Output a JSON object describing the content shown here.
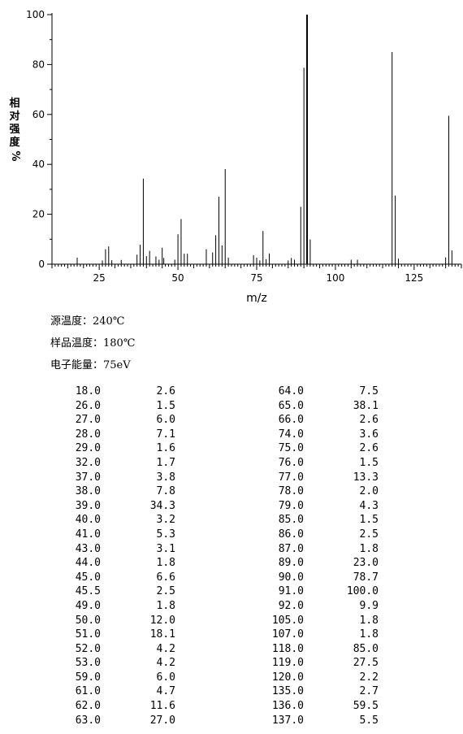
{
  "chart_data": {
    "type": "bar",
    "xlabel": "m/z",
    "ylabel": "相对强度%",
    "xlim": [
      10,
      140
    ],
    "ylim": [
      0,
      100
    ],
    "x_ticks": [
      25,
      50,
      75,
      100,
      125
    ],
    "y_ticks": [
      0,
      20,
      40,
      60,
      80,
      100
    ],
    "grid": false,
    "peaks": [
      [
        18.0,
        2.6
      ],
      [
        26.0,
        1.5
      ],
      [
        27.0,
        6.0
      ],
      [
        28.0,
        7.1
      ],
      [
        29.0,
        1.6
      ],
      [
        32.0,
        1.7
      ],
      [
        37.0,
        3.8
      ],
      [
        38.0,
        7.8
      ],
      [
        39.0,
        34.3
      ],
      [
        40.0,
        3.2
      ],
      [
        41.0,
        5.3
      ],
      [
        43.0,
        3.1
      ],
      [
        44.0,
        1.8
      ],
      [
        45.0,
        6.6
      ],
      [
        45.5,
        2.5
      ],
      [
        49.0,
        1.8
      ],
      [
        50.0,
        12.0
      ],
      [
        51.0,
        18.1
      ],
      [
        52.0,
        4.2
      ],
      [
        53.0,
        4.2
      ],
      [
        59.0,
        6.0
      ],
      [
        61.0,
        4.7
      ],
      [
        62.0,
        11.6
      ],
      [
        63.0,
        27.0
      ],
      [
        64.0,
        7.5
      ],
      [
        65.0,
        38.1
      ],
      [
        66.0,
        2.6
      ],
      [
        74.0,
        3.6
      ],
      [
        75.0,
        2.6
      ],
      [
        76.0,
        1.5
      ],
      [
        77.0,
        13.3
      ],
      [
        78.0,
        2.0
      ],
      [
        79.0,
        4.3
      ],
      [
        85.0,
        1.5
      ],
      [
        86.0,
        2.5
      ],
      [
        87.0,
        1.8
      ],
      [
        89.0,
        23.0
      ],
      [
        90.0,
        78.7
      ],
      [
        91.0,
        100.0
      ],
      [
        92.0,
        9.9
      ],
      [
        105.0,
        1.8
      ],
      [
        107.0,
        1.8
      ],
      [
        118.0,
        85.0
      ],
      [
        119.0,
        27.5
      ],
      [
        120.0,
        2.2
      ],
      [
        135.0,
        2.7
      ],
      [
        136.0,
        59.5
      ],
      [
        137.0,
        5.5
      ]
    ]
  },
  "conditions": {
    "source_temp": "源温度：240℃",
    "sample_temp": "样品温度：180℃",
    "electron_energy": "电子能量：75eV"
  },
  "table": {
    "left": [
      [
        "18.0",
        "2.6"
      ],
      [
        "26.0",
        "1.5"
      ],
      [
        "27.0",
        "6.0"
      ],
      [
        "28.0",
        "7.1"
      ],
      [
        "29.0",
        "1.6"
      ],
      [
        "32.0",
        "1.7"
      ],
      [
        "37.0",
        "3.8"
      ],
      [
        "38.0",
        "7.8"
      ],
      [
        "39.0",
        "34.3"
      ],
      [
        "40.0",
        "3.2"
      ],
      [
        "41.0",
        "5.3"
      ],
      [
        "43.0",
        "3.1"
      ],
      [
        "44.0",
        "1.8"
      ],
      [
        "45.0",
        "6.6"
      ],
      [
        "45.5",
        "2.5"
      ],
      [
        "49.0",
        "1.8"
      ],
      [
        "50.0",
        "12.0"
      ],
      [
        "51.0",
        "18.1"
      ],
      [
        "52.0",
        "4.2"
      ],
      [
        "53.0",
        "4.2"
      ],
      [
        "59.0",
        "6.0"
      ],
      [
        "61.0",
        "4.7"
      ],
      [
        "62.0",
        "11.6"
      ],
      [
        "63.0",
        "27.0"
      ]
    ],
    "right": [
      [
        "64.0",
        "7.5"
      ],
      [
        "65.0",
        "38.1"
      ],
      [
        "66.0",
        "2.6"
      ],
      [
        "74.0",
        "3.6"
      ],
      [
        "75.0",
        "2.6"
      ],
      [
        "76.0",
        "1.5"
      ],
      [
        "77.0",
        "13.3"
      ],
      [
        "78.0",
        "2.0"
      ],
      [
        "79.0",
        "4.3"
      ],
      [
        "85.0",
        "1.5"
      ],
      [
        "86.0",
        "2.5"
      ],
      [
        "87.0",
        "1.8"
      ],
      [
        "89.0",
        "23.0"
      ],
      [
        "90.0",
        "78.7"
      ],
      [
        "91.0",
        "100.0"
      ],
      [
        "92.0",
        "9.9"
      ],
      [
        "105.0",
        "1.8"
      ],
      [
        "107.0",
        "1.8"
      ],
      [
        "118.0",
        "85.0"
      ],
      [
        "119.0",
        "27.5"
      ],
      [
        "120.0",
        "2.2"
      ],
      [
        "135.0",
        "2.7"
      ],
      [
        "136.0",
        "59.5"
      ],
      [
        "137.0",
        "5.5"
      ]
    ]
  }
}
